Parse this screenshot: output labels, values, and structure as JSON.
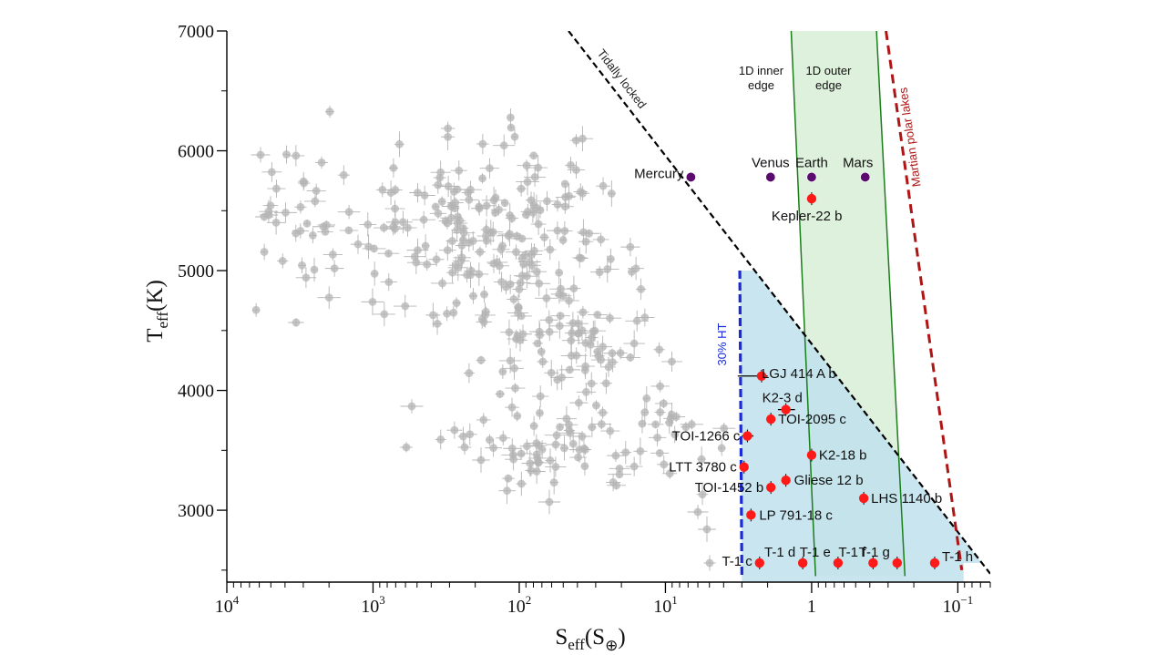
{
  "chart_data": {
    "type": "scatter",
    "x_scale": "log",
    "x_reversed": true,
    "xlim": [
      10000,
      0.06
    ],
    "ylim": [
      2400,
      7000
    ],
    "xlabel": {
      "main": "S",
      "sub": "eff",
      "rest": "(S",
      "unit": "⊕",
      "close": ")"
    },
    "ylabel": {
      "main": "T",
      "sub": "eff",
      "rest": "(K)"
    },
    "x_ticks": [
      {
        "value": 10000,
        "base": "10",
        "exp": "4"
      },
      {
        "value": 1000,
        "base": "10",
        "exp": "3"
      },
      {
        "value": 100,
        "base": "10",
        "exp": "2"
      },
      {
        "value": 10,
        "base": "10",
        "exp": "1"
      },
      {
        "value": 1,
        "base": "10",
        "exp": "0",
        "label": "1"
      },
      {
        "value": 0.1,
        "base": "10",
        "exp": "−1"
      }
    ],
    "y_ticks": [
      "3000",
      "4000",
      "5000",
      "6000",
      "7000"
    ],
    "lines": {
      "tidally_locked": {
        "label": "Tidally locked",
        "points": [
          [
            46,
            7000
          ],
          [
            0.06,
            2470
          ]
        ],
        "color": "#000000"
      },
      "inner_edge_1d": {
        "label": [
          "1D inner",
          "edge"
        ],
        "points": [
          [
            1.38,
            7000
          ],
          [
            0.94,
            2450
          ]
        ],
        "color": "#1a7f1a"
      },
      "outer_edge_1d": {
        "label": [
          "1D outer",
          "edge"
        ],
        "points": [
          [
            0.36,
            7000
          ],
          [
            0.23,
            2450
          ]
        ],
        "color": "#1a7f1a"
      },
      "martian_polar_lakes": {
        "label": "Martian polar lakes",
        "points": [
          [
            0.31,
            7000
          ],
          [
            0.094,
            2500
          ]
        ],
        "color": "#b01515"
      },
      "ht30": {
        "label": "30% HT",
        "points": [
          [
            3.1,
            5000
          ],
          [
            3.0,
            2450
          ]
        ],
        "color": "#1a2bd6"
      }
    },
    "solar_system": [
      {
        "name": "Mercury",
        "x": 6.7,
        "y": 5780
      },
      {
        "name": "Venus",
        "x": 1.91,
        "y": 5780
      },
      {
        "name": "Earth",
        "x": 1.0,
        "y": 5780
      },
      {
        "name": "Mars",
        "x": 0.43,
        "y": 5780
      }
    ],
    "labeled_planets": [
      {
        "name": "Kepler-22 b",
        "x": 1.0,
        "y": 5600
      },
      {
        "name": "LGJ 414 A b",
        "x": 2.2,
        "y": 4120,
        "xerr": [
          1.0,
          0.2
        ]
      },
      {
        "name": "K2-3 d",
        "x": 1.5,
        "y": 3840,
        "xerr": [
          0.2,
          0.2
        ]
      },
      {
        "name": "TOI-2095 c",
        "x": 1.9,
        "y": 3760
      },
      {
        "name": "TOI-1266 c",
        "x": 2.75,
        "y": 3620,
        "xerr": [
          0.25,
          0.25
        ]
      },
      {
        "name": "K2-18 b",
        "x": 1.0,
        "y": 3460
      },
      {
        "name": "LTT 3780 c",
        "x": 2.9,
        "y": 3360
      },
      {
        "name": "Gliese 12 b",
        "x": 1.5,
        "y": 3250
      },
      {
        "name": "TOI-1452 b",
        "x": 1.9,
        "y": 3190
      },
      {
        "name": "LHS 1140 b",
        "x": 0.44,
        "y": 3100
      },
      {
        "name": "LP 791-18 c",
        "x": 2.6,
        "y": 2960
      },
      {
        "name": "T-1 c",
        "x": 2.27,
        "y": 2560
      },
      {
        "name": "T-1 d",
        "x": 1.15,
        "y": 2560
      },
      {
        "name": "T-1 e",
        "x": 0.66,
        "y": 2560
      },
      {
        "name": "T-1 f",
        "x": 0.38,
        "y": 2560
      },
      {
        "name": "T-1 g",
        "x": 0.26,
        "y": 2560
      },
      {
        "name": "T-1 h",
        "x": 0.144,
        "y": 2560
      }
    ]
  },
  "colors": {
    "hz_fill": "#d8efd6",
    "ht_fill": "#bfe0ec",
    "planet_red": "#ff1a1a",
    "solar_purple": "#5b0a6e",
    "background_points": "#b4b4b4",
    "tidal_label": "#222222",
    "ht_label": "#1a2bd6",
    "martian_label": "#b01515"
  }
}
